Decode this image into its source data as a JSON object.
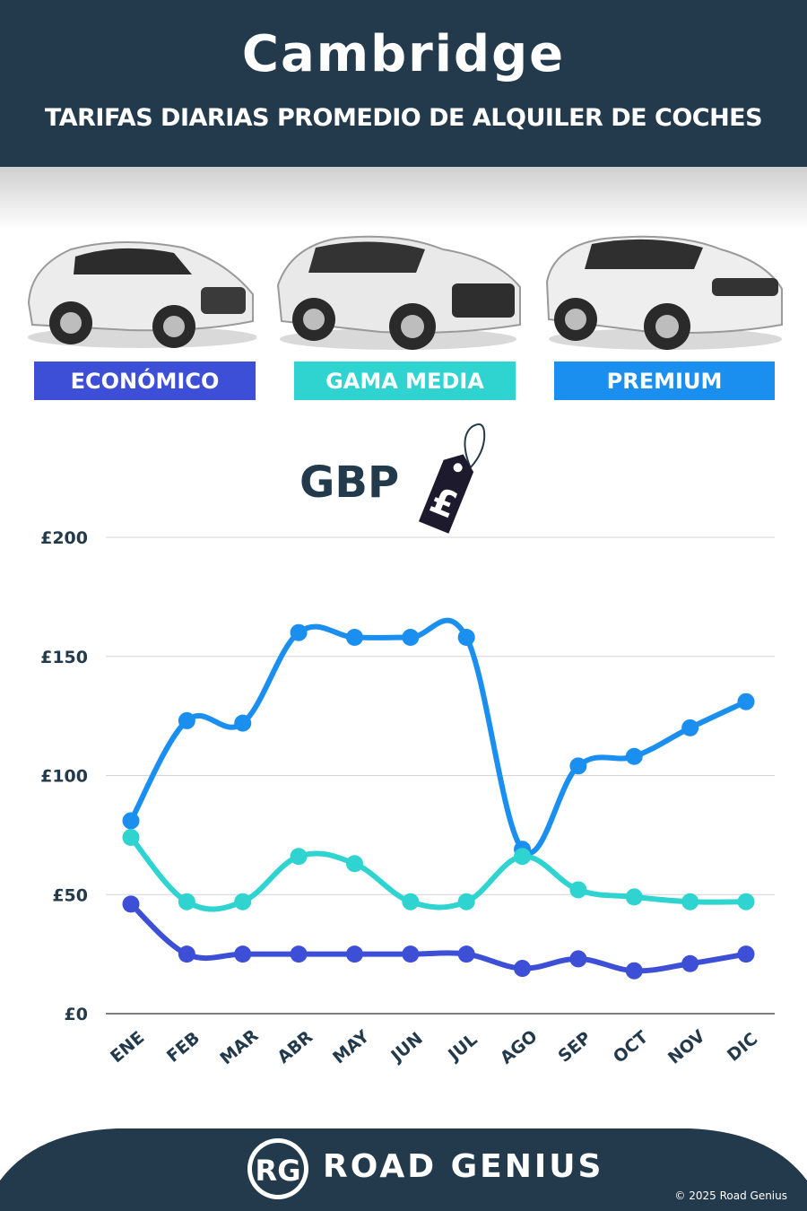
{
  "header": {
    "title": "Cambridge",
    "subtitle": "TARIFAS DIARIAS PROMEDIO DE ALQUILER DE COCHES"
  },
  "categories": [
    {
      "label": "ECONÓMICO",
      "color": "#3c4fd6"
    },
    {
      "label": "GAMA MEDIA",
      "color": "#2fd3cf"
    },
    {
      "label": "PREMIUM",
      "color": "#1b8ff0"
    }
  ],
  "currency": {
    "label": "GBP",
    "tag_symbol": "£"
  },
  "chart_data": {
    "type": "line",
    "categories": [
      "ENE",
      "FEB",
      "MAR",
      "ABR",
      "MAY",
      "JUN",
      "JUL",
      "AGO",
      "SEP",
      "OCT",
      "NOV",
      "DIC"
    ],
    "yticks": [
      {
        "value": 0,
        "label": "£0"
      },
      {
        "value": 50,
        "label": "£50"
      },
      {
        "value": 100,
        "label": "£100"
      },
      {
        "value": 150,
        "label": "£150"
      },
      {
        "value": 200,
        "label": "£200"
      }
    ],
    "ylim": [
      0,
      200
    ],
    "grid": true,
    "series": [
      {
        "name": "PREMIUM",
        "color": "#1b8ff0",
        "values": [
          81,
          123,
          122,
          160,
          158,
          158,
          158,
          69,
          104,
          108,
          120,
          131
        ]
      },
      {
        "name": "GAMA MEDIA",
        "color": "#2fd3cf",
        "values": [
          74,
          47,
          47,
          66,
          63,
          47,
          47,
          66,
          52,
          49,
          47,
          47
        ]
      },
      {
        "name": "ECONÓMICO",
        "color": "#3c4fd6",
        "values": [
          46,
          25,
          25,
          25,
          25,
          25,
          25,
          19,
          23,
          18,
          21,
          25
        ]
      }
    ]
  },
  "footer": {
    "logo_initials": "RG",
    "brand": "ROAD GENIUS",
    "copyright": "© 2025 Road Genius"
  }
}
